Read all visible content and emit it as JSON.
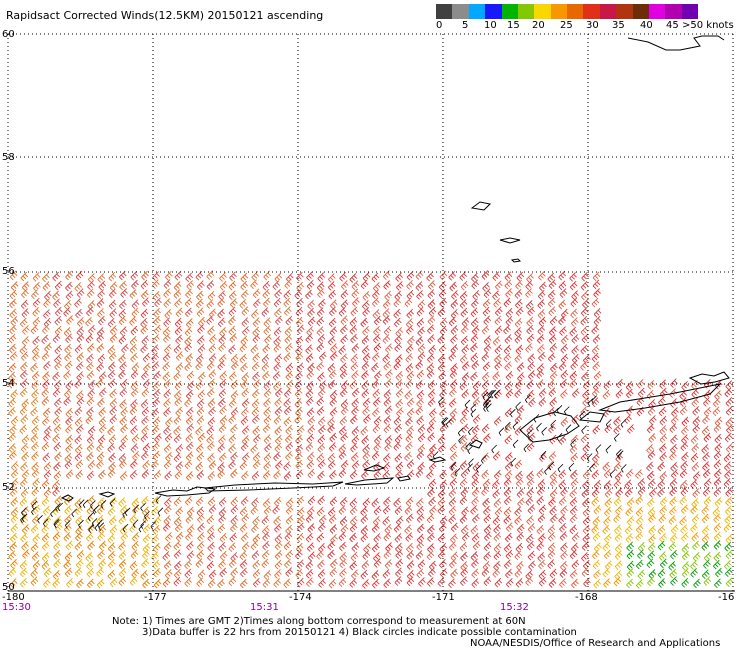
{
  "title": "Rapidsact Corrected Winds(12.5KM) 20150121 ascending",
  "legend": {
    "colors": [
      "#404040",
      "#8c8c8c",
      "#00a8ff",
      "#1818ff",
      "#00b400",
      "#86c800",
      "#f8d800",
      "#f89800",
      "#e86800",
      "#e03018",
      "#c81848",
      "#b03410",
      "#6e2c08",
      "#e000e0",
      "#b000b0",
      "#7000b0"
    ],
    "ticks": [
      "0",
      "5",
      "10",
      "15",
      "20",
      "25",
      "30",
      "35",
      "40",
      "45",
      ">50 knots"
    ]
  },
  "map": {
    "lat_labels": [
      "60",
      "58",
      "56",
      "54",
      "52",
      "50"
    ],
    "lon_labels": [
      "-180",
      "-177",
      "-174",
      "-171",
      "-168",
      "-16"
    ],
    "times": [
      "15:30",
      "15:31",
      "15:32"
    ],
    "colors": {
      "grid": "#000000",
      "time": "#8800a0",
      "land": "#000000"
    }
  },
  "notes": [
    "Note: 1) Times are GMT 2)Times along bottom correspond to measurement at 60N",
    "3)Data buffer is 22 hrs from 20150121 4) Black circles indicate possible contamination"
  ],
  "credit": "NOAA/NESDIS/Office of Research and Applications"
}
